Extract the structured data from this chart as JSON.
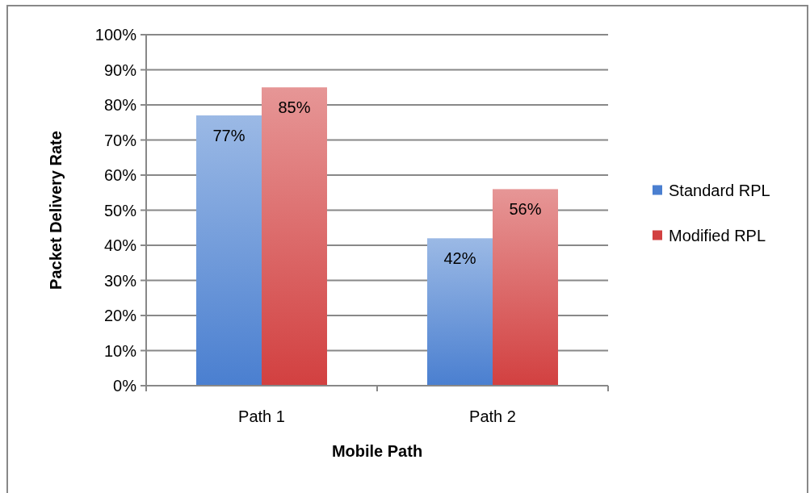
{
  "chart_data": {
    "type": "bar",
    "xlabel": "Mobile Path",
    "ylabel": "Packet Delivery Rate",
    "categories": [
      "Path 1",
      "Path 2"
    ],
    "series": [
      {
        "name": "Standard RPL",
        "color": "#4a7fd0",
        "values": [
          77,
          42
        ],
        "value_labels": [
          "77%",
          "42%"
        ]
      },
      {
        "name": "Modified RPL",
        "color": "#d24040",
        "values": [
          85,
          56
        ],
        "value_labels": [
          "85%",
          "56%"
        ]
      }
    ],
    "ylim": [
      0,
      100
    ],
    "yticks": [
      {
        "value": 0,
        "label": "0%"
      },
      {
        "value": 10,
        "label": "10%"
      },
      {
        "value": 20,
        "label": "20%"
      },
      {
        "value": 30,
        "label": "30%"
      },
      {
        "value": 40,
        "label": "40%"
      },
      {
        "value": 50,
        "label": "50%"
      },
      {
        "value": 60,
        "label": "60%"
      },
      {
        "value": 70,
        "label": "70%"
      },
      {
        "value": 80,
        "label": "80%"
      },
      {
        "value": 90,
        "label": "90%"
      },
      {
        "value": 100,
        "label": "100%"
      }
    ],
    "grid": "y",
    "legend": "right"
  }
}
